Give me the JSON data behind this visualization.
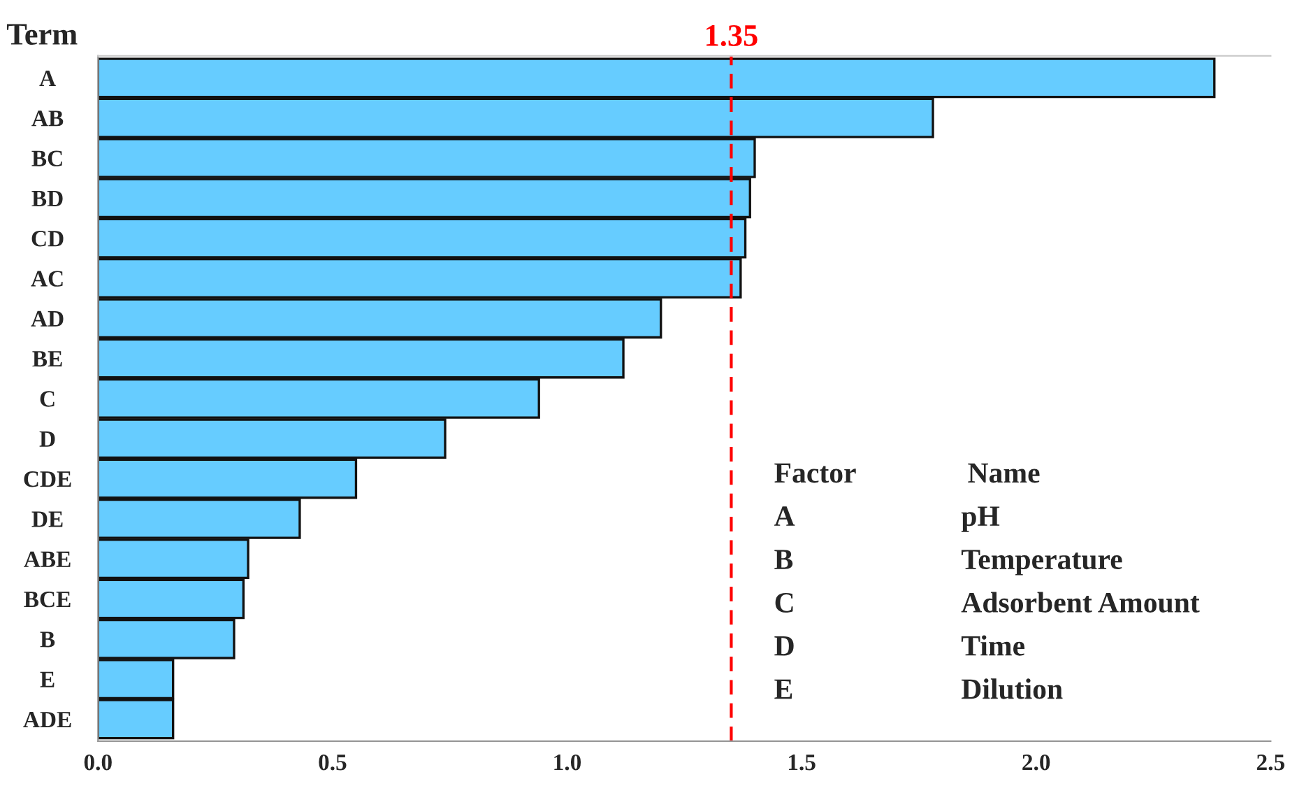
{
  "chart_data": {
    "type": "bar",
    "orientation": "horizontal",
    "ylabel": "Term",
    "categories": [
      "A",
      "AB",
      "BC",
      "BD",
      "CD",
      "AC",
      "AD",
      "BE",
      "C",
      "D",
      "CDE",
      "DE",
      "ABE",
      "BCE",
      "B",
      "E",
      "ADE"
    ],
    "values": [
      2.38,
      1.78,
      1.4,
      1.39,
      1.38,
      1.37,
      1.2,
      1.12,
      0.94,
      0.74,
      0.55,
      0.43,
      0.32,
      0.31,
      0.29,
      0.16,
      0.16
    ],
    "color": "#66ccff",
    "xlim": [
      0,
      2.5
    ],
    "xticks": [
      {
        "value": 0,
        "label": "0.0"
      },
      {
        "value": 0.5,
        "label": "0.5"
      },
      {
        "value": 1,
        "label": "1.0"
      },
      {
        "value": 1.5,
        "label": "1.5"
      },
      {
        "value": 2,
        "label": "2.0"
      },
      {
        "value": 2.5,
        "label": "2.5"
      }
    ],
    "ref_lines": [
      {
        "axis": "x",
        "value": 1.35,
        "label": "1.35",
        "color": "#ff0000",
        "line_style": "dashed"
      }
    ],
    "annotations": [
      "Factor",
      "Name",
      "A",
      "pH",
      "B",
      "Temperature",
      "C",
      "Adsorbent Amount",
      "D",
      "Time",
      "E",
      "Dilution"
    ],
    "grid": false,
    "legend": false
  }
}
